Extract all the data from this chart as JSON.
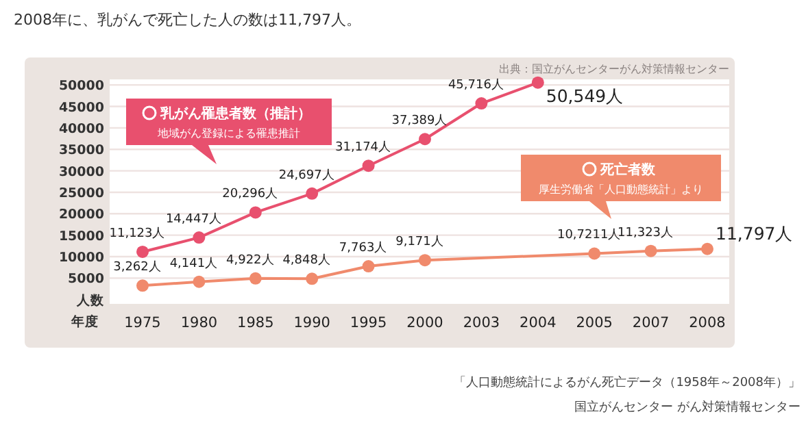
{
  "chart_data": {
    "type": "line",
    "title": "2008年に、乳がんで死亡した人の数は11,797人。",
    "xlabel": "年度",
    "categories": [
      "1975",
      "1980",
      "1985",
      "1990",
      "1995",
      "2000",
      "2003",
      "2004",
      "2005",
      "2007",
      "2008"
    ],
    "series": [
      {
        "name": "乳がん罹患者数（推計）",
        "color": "#e8506e",
        "values": [
          11123,
          14447,
          20296,
          24697,
          31174,
          37389,
          45716,
          50549,
          null,
          null,
          null
        ],
        "value_labels": [
          "11,123人",
          "14,447人",
          "20,296人",
          "24,697人",
          "31,174人",
          "37,389人",
          "45,716人",
          "50,549人",
          null,
          null,
          null
        ]
      },
      {
        "name": "死亡者数",
        "color": "#f08a6c",
        "values": [
          3262,
          4141,
          4922,
          4848,
          7763,
          9171,
          null,
          null,
          10721,
          11323,
          11797
        ],
        "value_labels": [
          "3,262人",
          "4,141人",
          "4,922人",
          "4,848人",
          "7,763人",
          "9,171人",
          null,
          null,
          "10,7211人",
          "11,323人",
          "11,797人"
        ]
      }
    ],
    "ylim": [
      -1000,
      51300
    ],
    "yticks": [
      {
        "value": 0,
        "label": "人数"
      },
      5000,
      10000,
      15000,
      20000,
      25000,
      30000,
      35000,
      40000,
      45000,
      50000
    ],
    "grid": "y",
    "marker": "circle",
    "legend": "top left",
    "annotations": [
      "出典：国立がんセンターがん対策情報センター",
      "地域がん登録による罹患推計",
      "厚生労働省「人口動態統計」より",
      "「人口動態統計によるがん死亡データ（1958年～2008年）」",
      "国立がんセンター がん対策情報センター"
    ]
  }
}
